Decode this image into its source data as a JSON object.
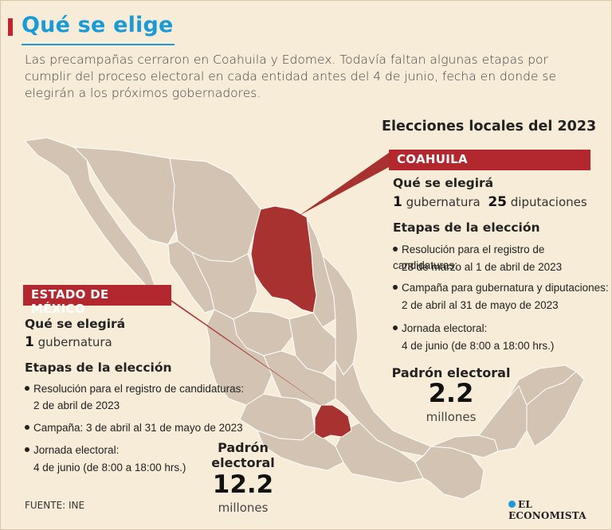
{
  "header": {
    "title": "Qué se elige",
    "intro": "Las precampañas cerraron en Coahuila y Edomex. Todavía faltan algunas etapas por cumplir del proceso electoral en cada entidad antes del 4 de junio, fecha en donde se elegirán a los próximos gobernadores."
  },
  "section_title": "Elecciones locales del 2023",
  "coahuila": {
    "tag": "COAHUILA",
    "elect_heading": "Qué se elegirá",
    "gub_num": "1",
    "gub_label": "gubernatura",
    "dip_num": "25",
    "dip_label": "diputaciones",
    "stages_heading": "Etapas de la elección",
    "stage1_a": "Resolución para el registro de candidaturas:",
    "stage1_b": "28 de marzo al 1 de abril de 2023",
    "stage2_a": "Campaña para gubernatura y diputaciones:",
    "stage2_b": "2 de abril al 31 de mayo de 2023",
    "stage3_a": "Jornada electoral:",
    "stage3_b": "4 de junio (de 8:00 a 18:00 hrs.)",
    "padron_label": "Padrón electoral",
    "padron_value": "2.2",
    "padron_unit": "millones"
  },
  "edomex": {
    "tag": "ESTADO DE MÉXICO",
    "elect_heading": "Qué se elegirá",
    "gub_num": "1",
    "gub_label": "gubernatura",
    "stages_heading": "Etapas de la elección",
    "stage1_a": "Resolución para el registro de candidaturas:",
    "stage1_b": "2 de abril de 2023",
    "stage2_a": "Campaña: 3 de abril al 31 de mayo de 2023",
    "stage3_a": "Jornada electoral:",
    "stage3_b": "4 de junio (de 8:00 a 18:00 hrs.)",
    "padron_label_1": "Padrón",
    "padron_label_2": "electoral",
    "padron_value": "12.2",
    "padron_unit": "millones"
  },
  "footer": {
    "source": "FUENTE: INE",
    "logo": "EL ECONOMISTA"
  },
  "colors": {
    "accent_red": "#b3272f",
    "title_blue": "#1a9ad6",
    "map_fill": "#d3c3b2",
    "highlight_fill": "#a8322f"
  }
}
